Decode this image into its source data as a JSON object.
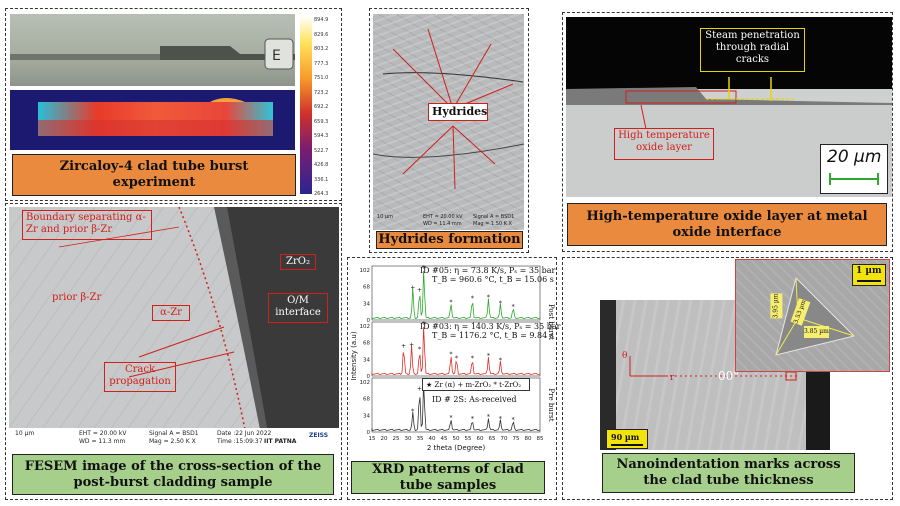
{
  "panels": {
    "burst": {
      "caption": "Zircaloy-4 clad tube burst experiment",
      "colorbar_ticks": [
        "894.9",
        "829.6",
        "803.2",
        "777.3",
        "751.0",
        "723.2",
        "692.2",
        "659.3",
        "594.3",
        "522.7",
        "426.8",
        "336.1",
        "264.3"
      ]
    },
    "hydrides": {
      "caption": "Hydrides formation",
      "label": "Hydrides",
      "sem_info": {
        "scale": "10 µm",
        "eht": "EHT = 20.00 kV",
        "wd": "WD = 11.4 mm",
        "signal": "Signal A = BSD1",
        "mag": "Mag = 1.50 K X"
      }
    },
    "oxide": {
      "caption": "High-temperature oxide layer at metal oxide interface",
      "steam_label": "Steam penetration through radial cracks",
      "oxide_label": "High temperature oxide layer",
      "scale": "20 µm"
    },
    "fesem": {
      "caption": "FESEM image of the cross-section of the post-burst cladding sample",
      "boundary_label": "Boundary separating α-Zr and prior β-Zr",
      "prior_label": "prior β-Zr",
      "alpha_label": "α-Zr",
      "zro2_label": "ZrO₂",
      "om_label": "O/M interface",
      "crack_label": "Crack propagation",
      "sem_info": {
        "scale": "10 µm",
        "eht": "EHT = 20.00 kV",
        "wd": "WD = 11.3 mm",
        "signal": "Signal A = BSD1",
        "mag": "Mag = 2.50 K X",
        "date": "Date :22 Jun 2022",
        "time": "Time :15:09:37",
        "org": "IIT PATNA",
        "brand": "ZEISS"
      }
    },
    "xrd": {
      "caption": "XRD patterns of clad tube samples",
      "post_label": "Post burst",
      "pre_label": "Pre burst",
      "id05": "ID #05: η = 73.8 K/s, Pₛ = 35 bar",
      "id05b": "T_B = 960.6 °C, t_B = 15.06 s",
      "id03": "ID #03: η = 140.3 K/s, Pₛ = 35 bar",
      "id03b": "T_B = 1176.2 °C, t_B = 9.84 s",
      "legend": "★ Zr (α) + m-ZrO₂   * t-ZrO₂",
      "id2s": "ID # 2S: As-received"
    },
    "nano": {
      "caption": "Nanoindentation marks across the clad tube thickness",
      "scale_small": "1 µm",
      "scale_large": "90 µm",
      "dim1": "3.95 µm",
      "dim2": "3.53 µm",
      "dim3": "3.85 µm",
      "angle": "00°",
      "r_label": "r",
      "theta_label": "θ"
    }
  },
  "chart_data": {
    "type": "line",
    "xlabel": "2 theta (Degree)",
    "ylabel": "Intensity (a.u)",
    "xlim": [
      15,
      85
    ],
    "x_ticks": [
      15,
      20,
      25,
      30,
      35,
      40,
      45,
      50,
      55,
      60,
      65,
      70,
      75,
      80,
      85
    ],
    "y_ticks": [
      0,
      34,
      68,
      102
    ],
    "series": [
      {
        "name": "ID #05",
        "color": "#2ea82e",
        "peaks": [
          [
            32,
            60
          ],
          [
            34.8,
            55
          ],
          [
            36.6,
            102
          ],
          [
            47.9,
            30
          ],
          [
            56.8,
            38
          ],
          [
            63.5,
            40
          ],
          [
            68.5,
            28
          ],
          [
            73.8,
            20
          ]
        ]
      },
      {
        "name": "ID #03",
        "color": "#e0302a",
        "peaks": [
          [
            28.2,
            55
          ],
          [
            31.5,
            58
          ],
          [
            34.8,
            48
          ],
          [
            36.6,
            102
          ],
          [
            47.9,
            38
          ],
          [
            50.2,
            30
          ],
          [
            56.8,
            30
          ],
          [
            63.5,
            35
          ],
          [
            68.5,
            25
          ]
        ]
      },
      {
        "name": "ID # 2S",
        "color": "#333333",
        "peaks": [
          [
            32,
            36
          ],
          [
            34.8,
            82
          ],
          [
            36.6,
            100
          ],
          [
            47.9,
            22
          ],
          [
            56.8,
            20
          ],
          [
            63.5,
            24
          ],
          [
            68.5,
            20
          ],
          [
            73.8,
            18
          ]
        ]
      }
    ]
  }
}
